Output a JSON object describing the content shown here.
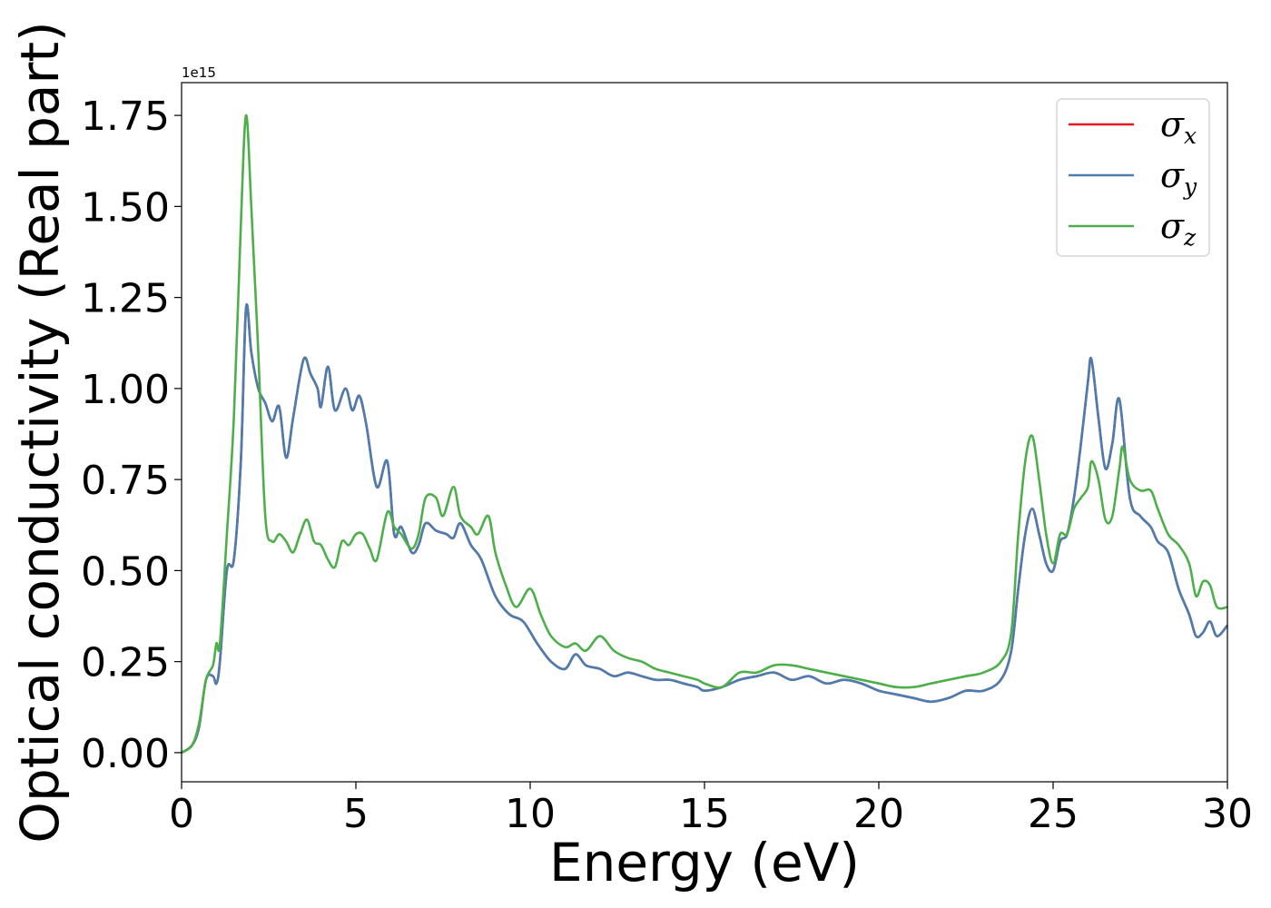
{
  "chart_data": {
    "type": "line",
    "xlabel": "Energy (eV)",
    "ylabel": "Optical conductivity (Real part)",
    "y_scale_label": "1e15",
    "xlim": [
      0,
      30
    ],
    "ylim": [
      -0.08,
      1.84
    ],
    "x_ticks": [
      0,
      5,
      10,
      15,
      20,
      25,
      30
    ],
    "x_tick_labels": [
      "0",
      "5",
      "10",
      "15",
      "20",
      "25",
      "30"
    ],
    "y_ticks": [
      0.0,
      0.25,
      0.5,
      0.75,
      1.0,
      1.25,
      1.5,
      1.75
    ],
    "y_tick_labels": [
      "0.00",
      "0.25",
      "0.50",
      "0.75",
      "1.00",
      "1.25",
      "1.50",
      "1.75"
    ],
    "grid": false,
    "legend_position": "top-right",
    "series": [
      {
        "name": "σx",
        "symbol": "σ",
        "subscript": "x",
        "color": "#e41a1c",
        "x": [
          0,
          0.3,
          0.5,
          0.7,
          0.9,
          1.0,
          1.1,
          1.3,
          1.5,
          1.7,
          1.85,
          2.0,
          2.2,
          2.4,
          2.6,
          2.8,
          3.0,
          3.2,
          3.5,
          3.7,
          3.9,
          4.0,
          4.2,
          4.4,
          4.7,
          4.9,
          5.1,
          5.3,
          5.6,
          5.9,
          6.1,
          6.3,
          6.6,
          6.8,
          7.0,
          7.3,
          7.6,
          7.8,
          8.0,
          8.3,
          8.6,
          9.0,
          9.4,
          9.8,
          10.2,
          10.6,
          11.0,
          11.3,
          11.6,
          12.0,
          12.4,
          12.8,
          13.2,
          13.6,
          14.0,
          14.4,
          14.8,
          15.0,
          15.5,
          16.0,
          16.5,
          17.0,
          17.5,
          18.0,
          18.5,
          19.0,
          19.5,
          20.0,
          20.5,
          21.0,
          21.5,
          22.0,
          22.5,
          23.0,
          23.5,
          23.8,
          24.0,
          24.2,
          24.4,
          24.6,
          24.8,
          25.0,
          25.2,
          25.4,
          25.6,
          25.8,
          26.0,
          26.1,
          26.3,
          26.5,
          26.7,
          26.9,
          27.2,
          27.5,
          27.8,
          28.0,
          28.3,
          28.6,
          28.9,
          29.1,
          29.3,
          29.5,
          29.7,
          30.0
        ],
        "y": [
          0.0,
          0.02,
          0.07,
          0.2,
          0.21,
          0.19,
          0.25,
          0.5,
          0.53,
          0.8,
          1.22,
          1.1,
          1.0,
          0.96,
          0.91,
          0.95,
          0.81,
          0.92,
          1.08,
          1.04,
          1.0,
          0.95,
          1.06,
          0.94,
          1.0,
          0.94,
          0.98,
          0.9,
          0.73,
          0.8,
          0.6,
          0.62,
          0.55,
          0.57,
          0.63,
          0.61,
          0.6,
          0.59,
          0.63,
          0.57,
          0.53,
          0.43,
          0.38,
          0.36,
          0.3,
          0.25,
          0.23,
          0.27,
          0.24,
          0.23,
          0.21,
          0.22,
          0.21,
          0.2,
          0.2,
          0.19,
          0.18,
          0.17,
          0.18,
          0.2,
          0.21,
          0.22,
          0.2,
          0.21,
          0.19,
          0.2,
          0.19,
          0.17,
          0.16,
          0.15,
          0.14,
          0.15,
          0.17,
          0.17,
          0.2,
          0.28,
          0.45,
          0.6,
          0.67,
          0.6,
          0.52,
          0.5,
          0.58,
          0.6,
          0.7,
          0.85,
          1.02,
          1.08,
          0.92,
          0.78,
          0.85,
          0.97,
          0.7,
          0.65,
          0.62,
          0.58,
          0.55,
          0.45,
          0.38,
          0.32,
          0.33,
          0.36,
          0.32,
          0.35
        ]
      },
      {
        "name": "σy",
        "symbol": "σ",
        "subscript": "y",
        "color": "#4a7eb0",
        "x": [
          0,
          0.3,
          0.5,
          0.7,
          0.9,
          1.0,
          1.1,
          1.3,
          1.5,
          1.7,
          1.85,
          2.0,
          2.2,
          2.4,
          2.6,
          2.8,
          3.0,
          3.2,
          3.5,
          3.7,
          3.9,
          4.0,
          4.2,
          4.4,
          4.7,
          4.9,
          5.1,
          5.3,
          5.6,
          5.9,
          6.1,
          6.3,
          6.6,
          6.8,
          7.0,
          7.3,
          7.6,
          7.8,
          8.0,
          8.3,
          8.6,
          9.0,
          9.4,
          9.8,
          10.2,
          10.6,
          11.0,
          11.3,
          11.6,
          12.0,
          12.4,
          12.8,
          13.2,
          13.6,
          14.0,
          14.4,
          14.8,
          15.0,
          15.5,
          16.0,
          16.5,
          17.0,
          17.5,
          18.0,
          18.5,
          19.0,
          19.5,
          20.0,
          20.5,
          21.0,
          21.5,
          22.0,
          22.5,
          23.0,
          23.5,
          23.8,
          24.0,
          24.2,
          24.4,
          24.6,
          24.8,
          25.0,
          25.2,
          25.4,
          25.6,
          25.8,
          26.0,
          26.1,
          26.3,
          26.5,
          26.7,
          26.9,
          27.2,
          27.5,
          27.8,
          28.0,
          28.3,
          28.6,
          28.9,
          29.1,
          29.3,
          29.5,
          29.7,
          30.0
        ],
        "y": [
          0.0,
          0.02,
          0.07,
          0.2,
          0.21,
          0.19,
          0.25,
          0.5,
          0.53,
          0.8,
          1.22,
          1.1,
          1.0,
          0.96,
          0.91,
          0.95,
          0.81,
          0.92,
          1.08,
          1.04,
          1.0,
          0.95,
          1.06,
          0.94,
          1.0,
          0.94,
          0.98,
          0.9,
          0.73,
          0.8,
          0.6,
          0.62,
          0.55,
          0.57,
          0.63,
          0.61,
          0.6,
          0.59,
          0.63,
          0.57,
          0.53,
          0.43,
          0.38,
          0.36,
          0.3,
          0.25,
          0.23,
          0.27,
          0.24,
          0.23,
          0.21,
          0.22,
          0.21,
          0.2,
          0.2,
          0.19,
          0.18,
          0.17,
          0.18,
          0.2,
          0.21,
          0.22,
          0.2,
          0.21,
          0.19,
          0.2,
          0.19,
          0.17,
          0.16,
          0.15,
          0.14,
          0.15,
          0.17,
          0.17,
          0.2,
          0.28,
          0.45,
          0.6,
          0.67,
          0.6,
          0.52,
          0.5,
          0.58,
          0.6,
          0.7,
          0.85,
          1.02,
          1.08,
          0.92,
          0.78,
          0.85,
          0.97,
          0.7,
          0.65,
          0.62,
          0.58,
          0.55,
          0.45,
          0.38,
          0.32,
          0.33,
          0.36,
          0.32,
          0.35
        ]
      },
      {
        "name": "σz",
        "symbol": "σ",
        "subscript": "z",
        "color": "#4daf4a",
        "x": [
          0,
          0.3,
          0.5,
          0.7,
          0.9,
          1.0,
          1.1,
          1.3,
          1.5,
          1.7,
          1.85,
          2.0,
          2.2,
          2.4,
          2.6,
          2.8,
          3.0,
          3.2,
          3.4,
          3.6,
          3.8,
          4.0,
          4.2,
          4.4,
          4.6,
          4.8,
          5.0,
          5.2,
          5.4,
          5.6,
          5.9,
          6.1,
          6.3,
          6.6,
          6.8,
          7.0,
          7.3,
          7.5,
          7.8,
          8.0,
          8.3,
          8.5,
          8.8,
          9.0,
          9.3,
          9.6,
          10.0,
          10.3,
          10.6,
          11.0,
          11.3,
          11.6,
          12.0,
          12.4,
          12.8,
          13.2,
          13.6,
          14.0,
          14.4,
          14.8,
          15.0,
          15.5,
          16.0,
          16.5,
          17.0,
          17.5,
          18.0,
          18.5,
          19.0,
          19.5,
          20.0,
          20.5,
          21.0,
          21.5,
          22.0,
          22.5,
          23.0,
          23.5,
          23.8,
          24.0,
          24.2,
          24.4,
          24.6,
          24.8,
          25.0,
          25.2,
          25.4,
          25.6,
          25.8,
          26.0,
          26.1,
          26.3,
          26.5,
          26.7,
          26.9,
          27.0,
          27.2,
          27.5,
          27.8,
          28.0,
          28.3,
          28.6,
          28.9,
          29.1,
          29.3,
          29.5,
          29.7,
          30.0
        ],
        "y": [
          0.0,
          0.02,
          0.08,
          0.2,
          0.24,
          0.3,
          0.3,
          0.6,
          0.92,
          1.45,
          1.75,
          1.5,
          1.1,
          0.65,
          0.58,
          0.6,
          0.58,
          0.55,
          0.6,
          0.64,
          0.58,
          0.57,
          0.53,
          0.51,
          0.58,
          0.57,
          0.6,
          0.6,
          0.56,
          0.53,
          0.66,
          0.62,
          0.6,
          0.56,
          0.6,
          0.7,
          0.7,
          0.65,
          0.73,
          0.65,
          0.62,
          0.6,
          0.65,
          0.55,
          0.46,
          0.4,
          0.45,
          0.38,
          0.32,
          0.29,
          0.3,
          0.28,
          0.32,
          0.28,
          0.26,
          0.25,
          0.23,
          0.22,
          0.21,
          0.2,
          0.19,
          0.18,
          0.22,
          0.22,
          0.24,
          0.24,
          0.23,
          0.22,
          0.21,
          0.2,
          0.19,
          0.18,
          0.18,
          0.19,
          0.2,
          0.21,
          0.22,
          0.25,
          0.33,
          0.6,
          0.8,
          0.87,
          0.75,
          0.6,
          0.52,
          0.6,
          0.6,
          0.67,
          0.7,
          0.73,
          0.8,
          0.75,
          0.64,
          0.65,
          0.78,
          0.84,
          0.75,
          0.72,
          0.72,
          0.67,
          0.6,
          0.57,
          0.52,
          0.43,
          0.47,
          0.46,
          0.4,
          0.4
        ]
      }
    ]
  }
}
